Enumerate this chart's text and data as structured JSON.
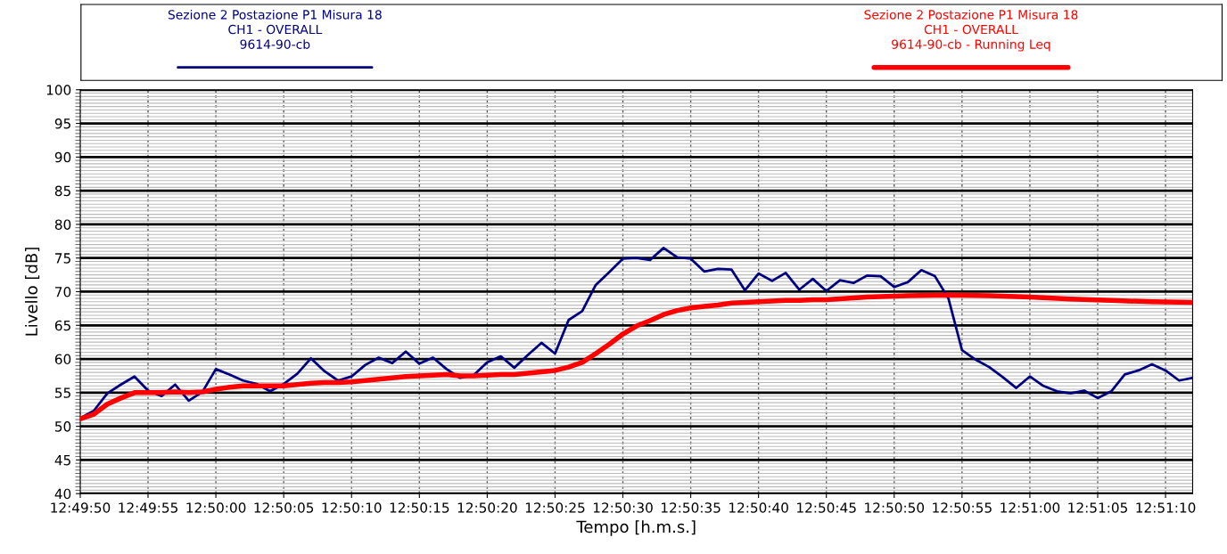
{
  "chart_data": {
    "type": "line",
    "xlabel": "Tempo [h.m.s.]",
    "ylabel": "Livello [dB]",
    "x": [
      12.830556,
      12.830833,
      12.831111,
      12.831389,
      12.831667,
      12.831944,
      12.832222,
      12.8325,
      12.832778,
      12.833056,
      12.833333,
      12.833611,
      12.833889,
      12.834167,
      12.834444,
      12.834722,
      12.835,
      12.835278,
      12.835556,
      12.835833,
      12.836111,
      12.836389,
      12.836667,
      12.836944,
      12.837222,
      12.8375,
      12.837778,
      12.838056,
      12.838333,
      12.838611,
      12.838889,
      12.839167,
      12.839444,
      12.839722,
      12.84,
      12.840278,
      12.840556,
      12.840833,
      12.841111,
      12.841389,
      12.841667,
      12.841944,
      12.842222,
      12.8425,
      12.842778,
      12.843056,
      12.843333,
      12.843611,
      12.843889,
      12.844167,
      12.844444,
      12.844722,
      12.845,
      12.845278,
      12.845556,
      12.845833,
      12.846111,
      12.846389,
      12.846667,
      12.846944,
      12.847222,
      12.8475,
      12.847778,
      12.848056,
      12.848333,
      12.848611,
      12.848889,
      12.849167,
      12.849444,
      12.849722,
      12.85,
      12.850278,
      12.850556,
      12.850833,
      12.851111,
      12.851389,
      12.851667,
      12.851944,
      12.852222,
      12.8525,
      12.852778,
      12.853056,
      12.853333
    ],
    "series": [
      {
        "name": "Sezione 2 Postazione P1 Misura 18\nCH1 - OVERALL\n9614-90-cb",
        "color": "#000080",
        "values": [
          51.2,
          52.3,
          54.9,
          56.2,
          57.4,
          55.3,
          54.5,
          56.2,
          53.8,
          55.1,
          58.5,
          57.7,
          56.8,
          56.3,
          55.2,
          56.3,
          57.8,
          60.1,
          58.2,
          56.8,
          57.4,
          59.1,
          60.2,
          59.4,
          61.1,
          59.3,
          60.2,
          58.5,
          57.2,
          57.6,
          59.5,
          60.4,
          58.7,
          60.6,
          62.4,
          60.8,
          65.8,
          67.1,
          71.0,
          72.9,
          74.9,
          75.0,
          74.7,
          76.5,
          75.1,
          74.9,
          73.0,
          73.4,
          73.3,
          70.2,
          72.7,
          71.6,
          72.8,
          70.3,
          71.9,
          70.1,
          71.7,
          71.3,
          72.4,
          72.3,
          70.7,
          71.4,
          73.2,
          72.3,
          69.0,
          61.3,
          59.9,
          58.8,
          57.3,
          55.7,
          57.4,
          56.0,
          55.2,
          54.9,
          55.3,
          54.2,
          55.2,
          57.7,
          58.3,
          59.2,
          58.3,
          56.8,
          57.2
        ]
      },
      {
        "name": "Sezione 2 Postazione P1 Misura 18\nCH1 - OVERALL\n9614-90-cb - Running Leq",
        "color": "#ff0000",
        "x": [
          12.830556,
          12.830833,
          12.831111,
          12.831389,
          12.831667,
          12.831944,
          12.832222,
          12.8325,
          12.832778,
          12.833056,
          12.833333,
          12.833611,
          12.833889,
          12.834167,
          12.834444,
          12.834722,
          12.835,
          12.835278,
          12.835556,
          12.835833,
          12.836111,
          12.836389,
          12.836667,
          12.836944,
          12.837222,
          12.8375,
          12.837778,
          12.838056,
          12.838333,
          12.838611,
          12.838889,
          12.839167,
          12.839444,
          12.839722,
          12.84,
          12.840278,
          12.840556,
          12.840833,
          12.841111,
          12.841389,
          12.841667,
          12.841944,
          12.842222,
          12.8425,
          12.842778,
          12.843056,
          12.843333,
          12.843611,
          12.843889,
          12.844167,
          12.844444,
          12.844722,
          12.845,
          12.845278,
          12.845556,
          12.845833,
          12.846667,
          12.8475,
          12.848333,
          12.849167,
          12.85,
          12.850833,
          12.851667,
          12.8525,
          12.853333
        ],
        "values": [
          51.1,
          51.8,
          53.3,
          54.2,
          55.0,
          55.0,
          55.0,
          55.1,
          55.0,
          55.1,
          55.5,
          55.8,
          56.0,
          56.0,
          56.0,
          56.0,
          56.2,
          56.4,
          56.5,
          56.5,
          56.6,
          56.8,
          57.0,
          57.2,
          57.4,
          57.5,
          57.6,
          57.7,
          57.5,
          57.5,
          57.6,
          57.7,
          57.7,
          57.9,
          58.1,
          58.3,
          58.8,
          59.5,
          60.8,
          62.2,
          63.7,
          64.9,
          65.7,
          66.6,
          67.2,
          67.6,
          67.8,
          68.0,
          68.3,
          68.4,
          68.5,
          68.6,
          68.7,
          68.7,
          68.8,
          68.8,
          69.2,
          69.4,
          69.5,
          69.4,
          69.2,
          68.9,
          68.7,
          68.5,
          68.4
        ]
      }
    ],
    "xlim": [
      12.830556,
      12.853333
    ],
    "xticks": [
      {
        "value": 12.830556,
        "label": "12:49:50"
      },
      {
        "value": 12.831944,
        "label": "12:49:55"
      },
      {
        "value": 12.833333,
        "label": "12:50:00"
      },
      {
        "value": 12.834722,
        "label": "12:50:05"
      },
      {
        "value": 12.836111,
        "label": "12:50:10"
      },
      {
        "value": 12.8375,
        "label": "12:50:15"
      },
      {
        "value": 12.838889,
        "label": "12:50:20"
      },
      {
        "value": 12.840278,
        "label": "12:50:25"
      },
      {
        "value": 12.841667,
        "label": "12:50:30"
      },
      {
        "value": 12.843056,
        "label": "12:50:35"
      },
      {
        "value": 12.844444,
        "label": "12:50:40"
      },
      {
        "value": 12.845833,
        "label": "12:50:45"
      },
      {
        "value": 12.847222,
        "label": "12:50:50"
      },
      {
        "value": 12.848611,
        "label": "12:50:55"
      },
      {
        "value": 12.85,
        "label": "12:51:00"
      },
      {
        "value": 12.851389,
        "label": "12:51:05"
      },
      {
        "value": 12.852778,
        "label": "12:51:10"
      }
    ],
    "ylim": [
      40,
      100
    ],
    "yticks": [
      40,
      45,
      50,
      55,
      60,
      65,
      70,
      75,
      80,
      85,
      90,
      95,
      100
    ],
    "grid": true,
    "legend": "top",
    "marker": "none",
    "line_style": "solid"
  }
}
